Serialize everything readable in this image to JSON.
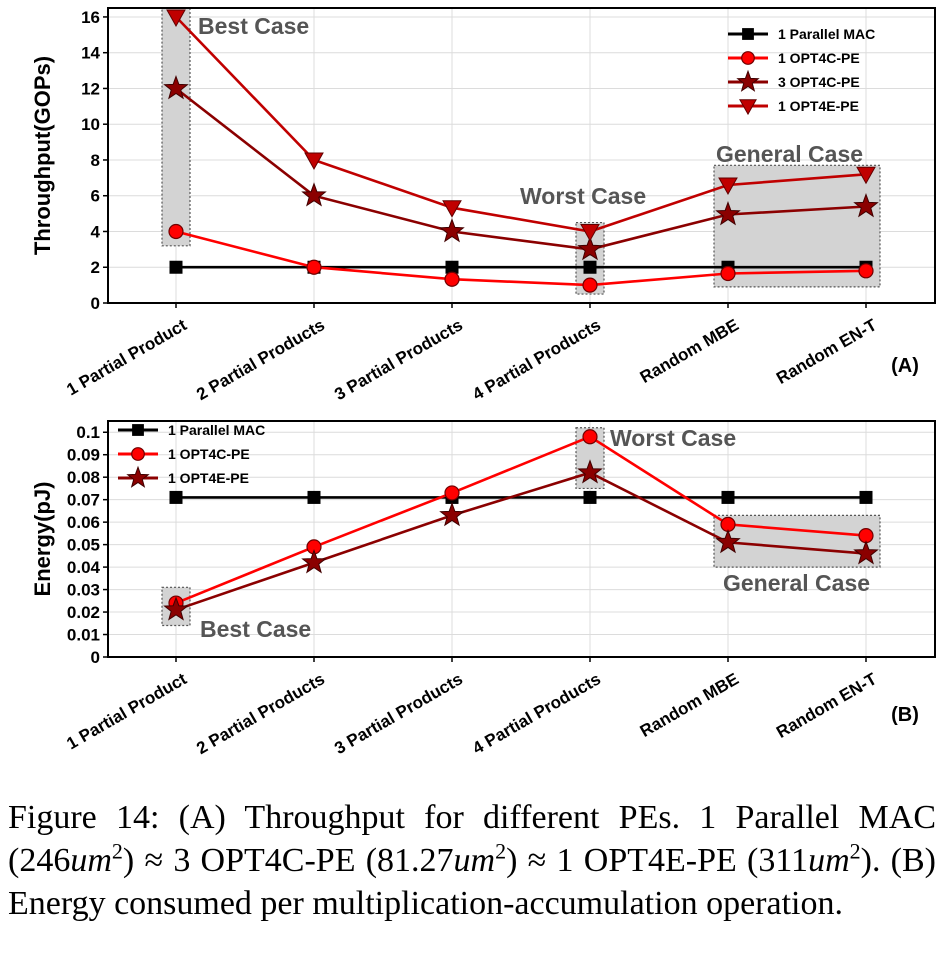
{
  "chart_data": [
    {
      "type": "line",
      "panel_label": "(A)",
      "ylabel": "Throughput(GOPs)",
      "categories": [
        "1 Partial Product",
        "2 Partial Products",
        "3 Partial Products",
        "4 Partial Products",
        "Random MBE",
        "Random EN-T"
      ],
      "ylim": [
        0,
        16.5
      ],
      "yticks": [
        0,
        2,
        4,
        6,
        8,
        10,
        12,
        14,
        16
      ],
      "ytick_labels": [
        "0",
        "2",
        "4",
        "6",
        "8",
        "10",
        "12",
        "14",
        "16"
      ],
      "grid": true,
      "legend_position": "top-right",
      "series": [
        {
          "name": "1 Parallel MAC",
          "marker": "square",
          "color": "#000000",
          "values": [
            2,
            2,
            2,
            2,
            2,
            2
          ]
        },
        {
          "name": "1 OPT4C-PE",
          "marker": "circle",
          "color": "#ff0000",
          "values": [
            4,
            2,
            1.33,
            1,
            1.65,
            1.8
          ]
        },
        {
          "name": "3 OPT4C-PE",
          "marker": "star",
          "color": "#8b0000",
          "values": [
            12,
            6,
            4,
            3,
            4.95,
            5.4
          ]
        },
        {
          "name": "1 OPT4E-PE",
          "marker": "triangle-down",
          "color": "#c00000",
          "values": [
            16,
            8,
            5.33,
            4,
            6.6,
            7.2
          ]
        }
      ],
      "annotations": [
        {
          "text": "Best Case",
          "category_range": [
            0,
            0
          ],
          "y_range": [
            3.2,
            16.5
          ]
        },
        {
          "text": "Worst Case",
          "category_range": [
            3,
            3
          ],
          "y_range": [
            0.5,
            4.5
          ]
        },
        {
          "text": "General Case",
          "category_range": [
            4,
            5
          ],
          "y_range": [
            0.9,
            7.7
          ]
        }
      ]
    },
    {
      "type": "line",
      "panel_label": "(B)",
      "ylabel": "Energy(pJ)",
      "categories": [
        "1 Partial Product",
        "2 Partial Products",
        "3 Partial Products",
        "4 Partial Products",
        "Random MBE",
        "Random EN-T"
      ],
      "ylim": [
        0,
        0.105
      ],
      "yticks": [
        0,
        0.01,
        0.02,
        0.03,
        0.04,
        0.05,
        0.06,
        0.07,
        0.08,
        0.09,
        0.1
      ],
      "ytick_labels": [
        "0",
        "0.01",
        "0.02",
        "0.03",
        "0.04",
        "0.05",
        "0.06",
        "0.07",
        "0.08",
        "0.09",
        "0.1"
      ],
      "grid": true,
      "legend_position": "top-left",
      "series": [
        {
          "name": "1 Parallel MAC",
          "marker": "square",
          "color": "#000000",
          "values": [
            0.071,
            0.071,
            0.071,
            0.071,
            0.071,
            0.071
          ]
        },
        {
          "name": "1 OPT4C-PE",
          "marker": "circle",
          "color": "#ff0000",
          "values": [
            0.024,
            0.049,
            0.073,
            0.098,
            0.059,
            0.054
          ]
        },
        {
          "name": "1 OPT4E-PE",
          "marker": "star",
          "color": "#8b0000",
          "values": [
            0.021,
            0.042,
            0.063,
            0.082,
            0.051,
            0.046
          ]
        }
      ],
      "annotations": [
        {
          "text": "Best Case",
          "category_range": [
            0,
            0
          ],
          "y_range": [
            0.014,
            0.031
          ]
        },
        {
          "text": "Worst Case",
          "category_range": [
            3,
            3
          ],
          "y_range": [
            0.075,
            0.102
          ]
        },
        {
          "text": "General Case",
          "category_range": [
            4,
            5
          ],
          "y_range": [
            0.04,
            0.063
          ]
        }
      ]
    }
  ],
  "caption": {
    "part1": "Figure 14: (A) Throughput for different PEs. 1 Parallel MAC (246",
    "unit1": "um",
    "part2": ") ≈ 3 OPT4C-PE (81.27",
    "unit2": "um",
    "part3": ") ≈ 1 OPT4E-PE (311",
    "unit3": "um",
    "part4": "). (B) Energy consumed per multiplication-accumulation operation.",
    "exponent": "2"
  }
}
